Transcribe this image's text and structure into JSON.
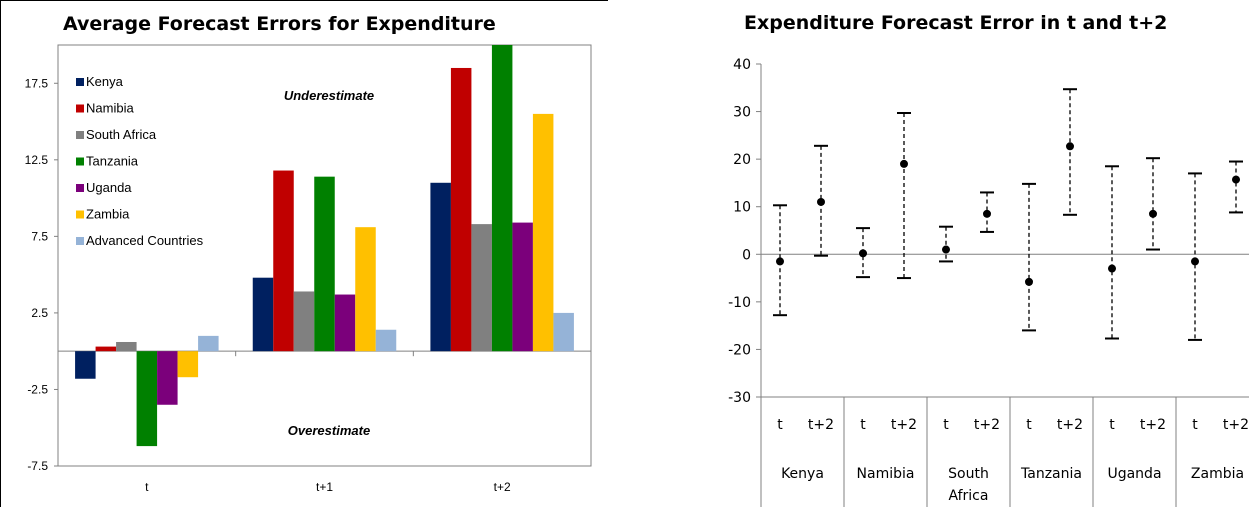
{
  "chart_data": [
    {
      "type": "bar",
      "title": "Average Forecast Errors for Expenditure",
      "categories": [
        "t",
        "t+1",
        "t+2"
      ],
      "series": [
        {
          "name": "Kenya",
          "color": "#002060",
          "values": [
            -1.8,
            4.8,
            11.0
          ]
        },
        {
          "name": "Namibia",
          "color": "#C00000",
          "values": [
            0.3,
            11.8,
            18.5
          ]
        },
        {
          "name": "South Africa",
          "color": "#808080",
          "values": [
            0.6,
            3.9,
            8.3
          ]
        },
        {
          "name": "Tanzania",
          "color": "#008000",
          "values": [
            -6.2,
            11.4,
            20.0
          ]
        },
        {
          "name": "Uganda",
          "color": "#7B007B",
          "values": [
            -3.5,
            3.7,
            8.4
          ]
        },
        {
          "name": "Zambia",
          "color": "#FFC000",
          "values": [
            -1.7,
            8.1,
            15.5
          ]
        },
        {
          "name": "Advanced Countries",
          "color": "#95B3D7",
          "values": [
            1.0,
            1.4,
            2.5
          ]
        }
      ],
      "yticks": [
        "17.5",
        "12.5",
        "7.5",
        "2.5",
        "-2.5",
        "-7.5"
      ],
      "ylim": [
        -7.5,
        20
      ],
      "annotations": [
        "Underestimate",
        "Overestimate"
      ],
      "legend": "top-left"
    },
    {
      "type": "errorbar",
      "title": "Expenditure Forecast Error in t and t+2",
      "groups": [
        {
          "name": "Kenya",
          "points": [
            {
              "label": "t",
              "mean": -1.5,
              "low": -12.8,
              "high": 10.3
            },
            {
              "label": "t+2",
              "mean": 11.0,
              "low": -0.3,
              "high": 22.8
            }
          ]
        },
        {
          "name": "Namibia",
          "points": [
            {
              "label": "t",
              "mean": 0.2,
              "low": -4.8,
              "high": 5.5
            },
            {
              "label": "t+2",
              "mean": 19.0,
              "low": -5.0,
              "high": 29.7
            }
          ]
        },
        {
          "name": "South Africa",
          "points": [
            {
              "label": "t",
              "mean": 1.0,
              "low": -1.5,
              "high": 5.8
            },
            {
              "label": "t+2",
              "mean": 8.5,
              "low": 4.7,
              "high": 13.0
            }
          ]
        },
        {
          "name": "Tanzania",
          "points": [
            {
              "label": "t",
              "mean": -5.8,
              "low": -16.0,
              "high": 14.8
            },
            {
              "label": "t+2",
              "mean": 22.7,
              "low": 8.3,
              "high": 34.7
            }
          ]
        },
        {
          "name": "Uganda",
          "points": [
            {
              "label": "t",
              "mean": -3.0,
              "low": -17.7,
              "high": 18.5
            },
            {
              "label": "t+2",
              "mean": 8.5,
              "low": 1.0,
              "high": 20.2
            }
          ]
        },
        {
          "name": "Zambia",
          "points": [
            {
              "label": "t",
              "mean": -1.5,
              "low": -18.0,
              "high": 17.0
            },
            {
              "label": "t+2",
              "mean": 15.7,
              "low": 8.8,
              "high": 19.5
            }
          ]
        }
      ],
      "yticks": [
        "40",
        "30",
        "20",
        "10",
        "0",
        "-10",
        "-20",
        "-30"
      ],
      "ylim": [
        -30,
        40
      ]
    }
  ]
}
